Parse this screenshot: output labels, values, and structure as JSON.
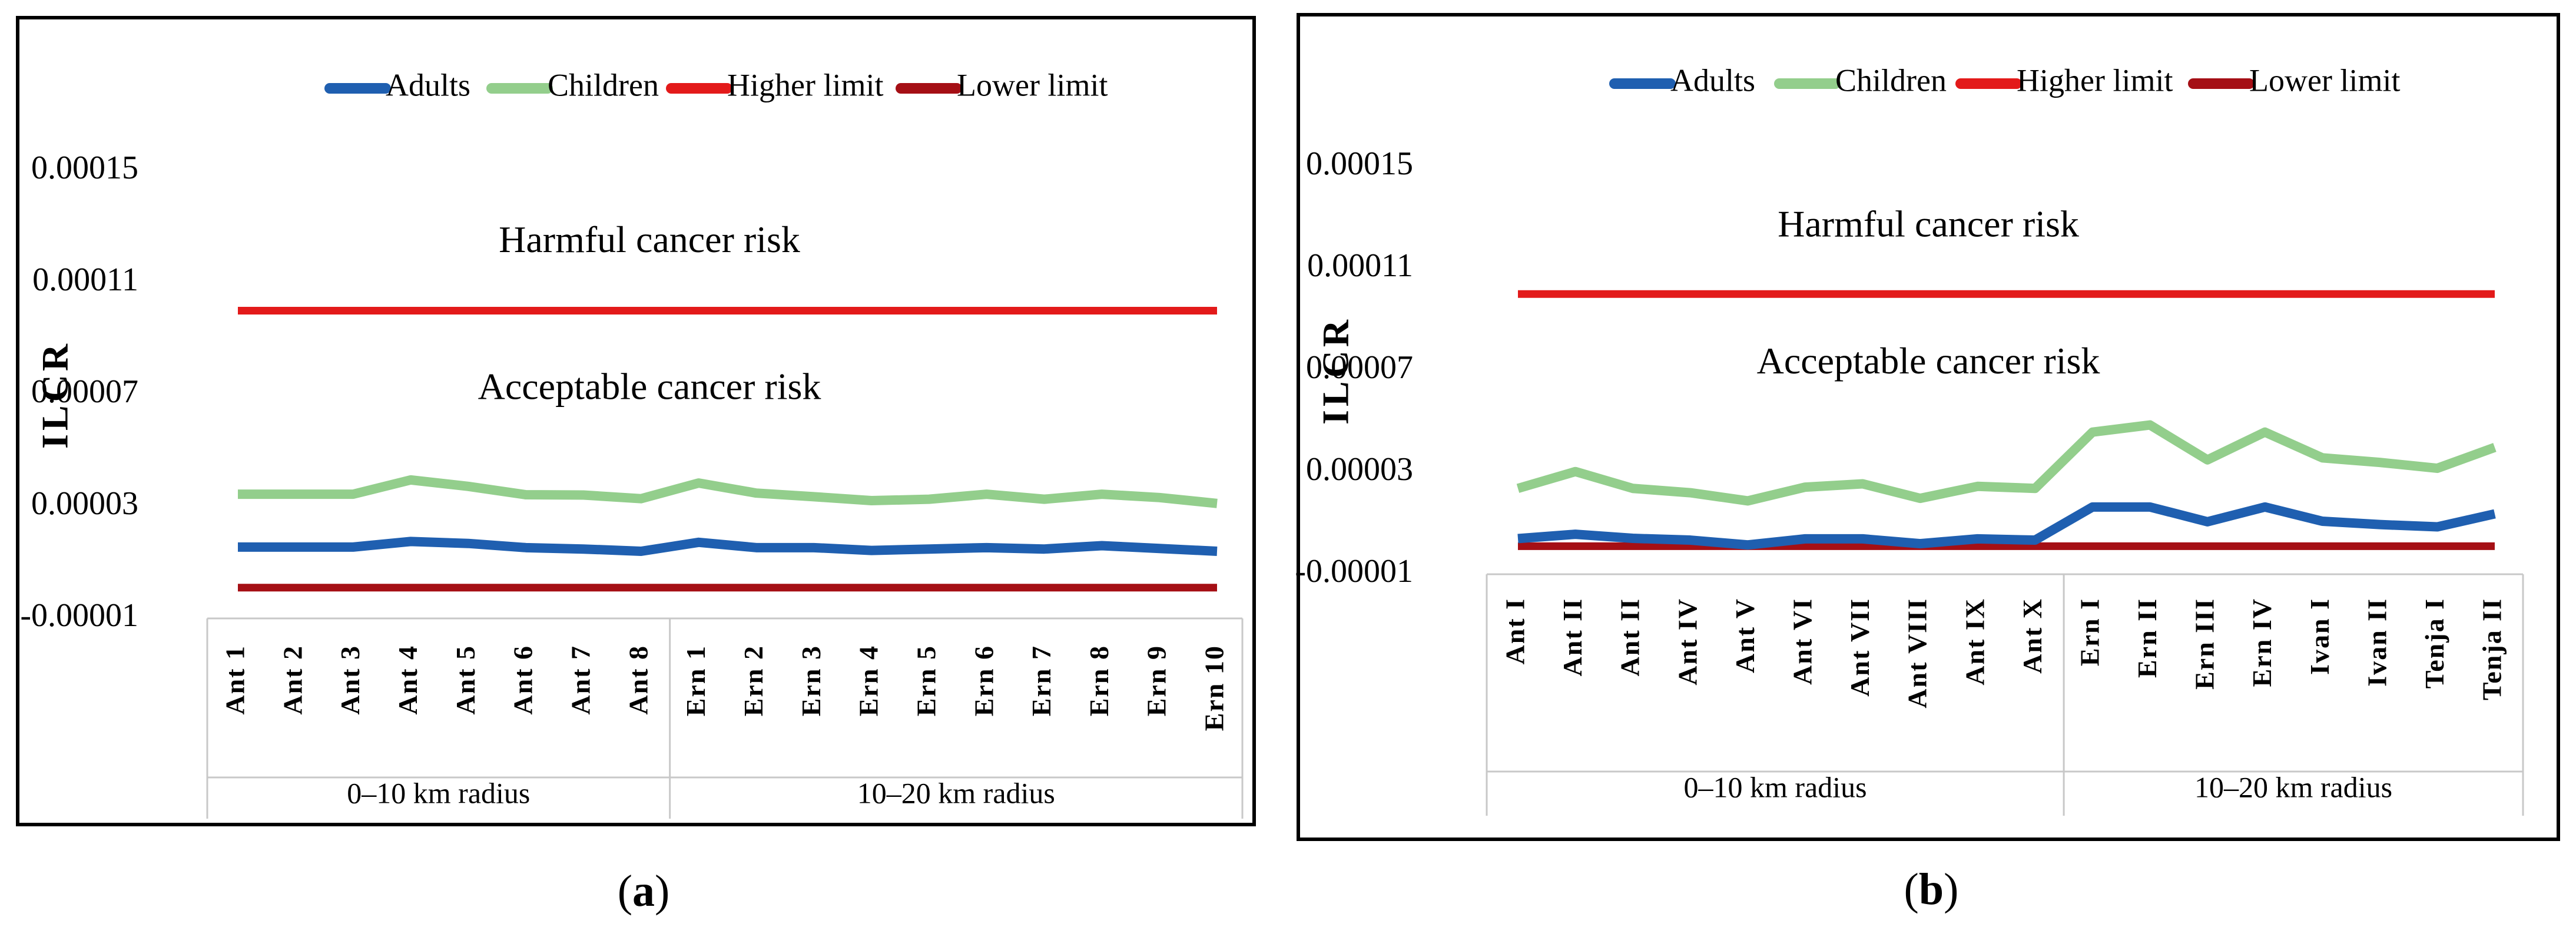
{
  "panels": [
    {
      "caption_open": "(",
      "caption_letter": "a",
      "caption_close": ")",
      "chart_data": {
        "type": "line",
        "ylabel": "ILCR",
        "yticks": [
          "0.00015",
          "0.00011",
          "0.00007",
          "0.00003",
          "-0.00001"
        ],
        "ylim": [
          -1e-05,
          0.00015
        ],
        "categories": [
          "Ant 1",
          "Ant 2",
          "Ant 3",
          "Ant 4",
          "Ant 5",
          "Ant 6",
          "Ant 7",
          "Ant 8",
          "Ern 1",
          "Ern 2",
          "Ern 3",
          "Ern 4",
          "Ern 5",
          "Ern 6",
          "Ern 7",
          "Ern 8",
          "Ern 9",
          "Ern 10"
        ],
        "groups": [
          {
            "label": "0–10 km radius",
            "count": 8
          },
          {
            "label": "10–20 km radius",
            "count": 10
          }
        ],
        "series": [
          {
            "name": "Adults",
            "color": "#1f5fb0",
            "values": [
              1.55e-05,
              1.55e-05,
              1.55e-05,
              1.75e-05,
              1.68e-05,
              1.53e-05,
              1.48e-05,
              1.4e-05,
              1.72e-05,
              1.53e-05,
              1.53e-05,
              1.43e-05,
              1.48e-05,
              1.53e-05,
              1.48e-05,
              1.6e-05,
              1.5e-05,
              1.4e-05
            ]
          },
          {
            "name": "Children",
            "color": "#93ce8c",
            "values": [
              3.44e-05,
              3.44e-05,
              3.44e-05,
              3.95e-05,
              3.72e-05,
              3.42e-05,
              3.41e-05,
              3.28e-05,
              3.84e-05,
              3.48e-05,
              3.35e-05,
              3.21e-05,
              3.26e-05,
              3.44e-05,
              3.26e-05,
              3.44e-05,
              3.32e-05,
              3.11e-05
            ]
          },
          {
            "name": "Higher limit",
            "color": "#e31a1a",
            "values": [
              0.0001,
              0.0001,
              0.0001,
              0.0001,
              0.0001,
              0.0001,
              0.0001,
              0.0001,
              0.0001,
              0.0001,
              0.0001,
              0.0001,
              0.0001,
              0.0001,
              0.0001,
              0.0001,
              0.0001,
              0.0001
            ]
          },
          {
            "name": "Lower limit",
            "color": "#a50f15",
            "values": [
              1e-06,
              1e-06,
              1e-06,
              1e-06,
              1e-06,
              1e-06,
              1e-06,
              1e-06,
              1e-06,
              1e-06,
              1e-06,
              1e-06,
              1e-06,
              1e-06,
              1e-06,
              1e-06,
              1e-06,
              1e-06
            ]
          }
        ],
        "annotations": [
          {
            "text": "Harmful cancer risk",
            "value": 0.000124
          },
          {
            "text": "Acceptable  cancer risk",
            "value": 7.15e-05
          }
        ],
        "legend_position": "top"
      }
    },
    {
      "caption_open": "(",
      "caption_letter": "b",
      "caption_close": ")",
      "chart_data": {
        "type": "line",
        "ylabel": "ILCR",
        "yticks": [
          "0.00015",
          "0.00011",
          "0.00007",
          "0.00003",
          "-0.00001"
        ],
        "ylim": [
          -1e-05,
          0.00015
        ],
        "categories": [
          "Ant I",
          "Ant II",
          "Ant II",
          "Ant IV",
          "Ant V",
          "Ant VI",
          "Ant VII",
          "Ant VIII",
          "Ant IX",
          "Ant X",
          "Ern I",
          "Ern II",
          "Ern III",
          "Ern IV",
          "Ivan I",
          "Ivan II",
          "Tenja I",
          "Tenja II"
        ],
        "groups": [
          {
            "label": "0–10 km radius",
            "count": 10
          },
          {
            "label": "10–20 km radius",
            "count": 8
          }
        ],
        "series": [
          {
            "name": "Adults",
            "color": "#1f5fb0",
            "values": [
              4e-06,
              5.7e-06,
              4.1e-06,
              3.4e-06,
              1.5e-06,
              3.9e-06,
              3.9e-06,
              2e-06,
              3.9e-06,
              3.4e-06,
              1.64e-05,
              1.64e-05,
              1.06e-05,
              1.64e-05,
              1.08e-05,
              9.5e-06,
              8.6e-06,
              1.37e-05
            ]
          },
          {
            "name": "Children",
            "color": "#93ce8c",
            "values": [
              2.37e-05,
              3.03e-05,
              2.37e-05,
              2.2e-05,
              1.88e-05,
              2.42e-05,
              2.55e-05,
              1.98e-05,
              2.45e-05,
              2.37e-05,
              4.58e-05,
              4.86e-05,
              3.49e-05,
              4.58e-05,
              3.57e-05,
              3.39e-05,
              3.16e-05,
              3.98e-05
            ]
          },
          {
            "name": "Higher limit",
            "color": "#e31a1a",
            "values": [
              0.0001,
              0.0001,
              0.0001,
              0.0001,
              0.0001,
              0.0001,
              0.0001,
              0.0001,
              0.0001,
              0.0001,
              0.0001,
              0.0001,
              0.0001,
              0.0001,
              0.0001,
              0.0001,
              0.0001,
              0.0001
            ]
          },
          {
            "name": "Lower limit",
            "color": "#a50f15",
            "values": [
              1e-06,
              1e-06,
              1e-06,
              1e-06,
              1e-06,
              1e-06,
              1e-06,
              1e-06,
              1e-06,
              1e-06,
              1e-06,
              1e-06,
              1e-06,
              1e-06,
              1e-06,
              1e-06,
              1e-06,
              1e-06
            ]
          }
        ],
        "annotations": [
          {
            "text": "Harmful cancer risk",
            "value": 0.000126
          },
          {
            "text": "Acceptable  cancer risk",
            "value": 7.22e-05
          }
        ],
        "legend_position": "top"
      }
    }
  ]
}
